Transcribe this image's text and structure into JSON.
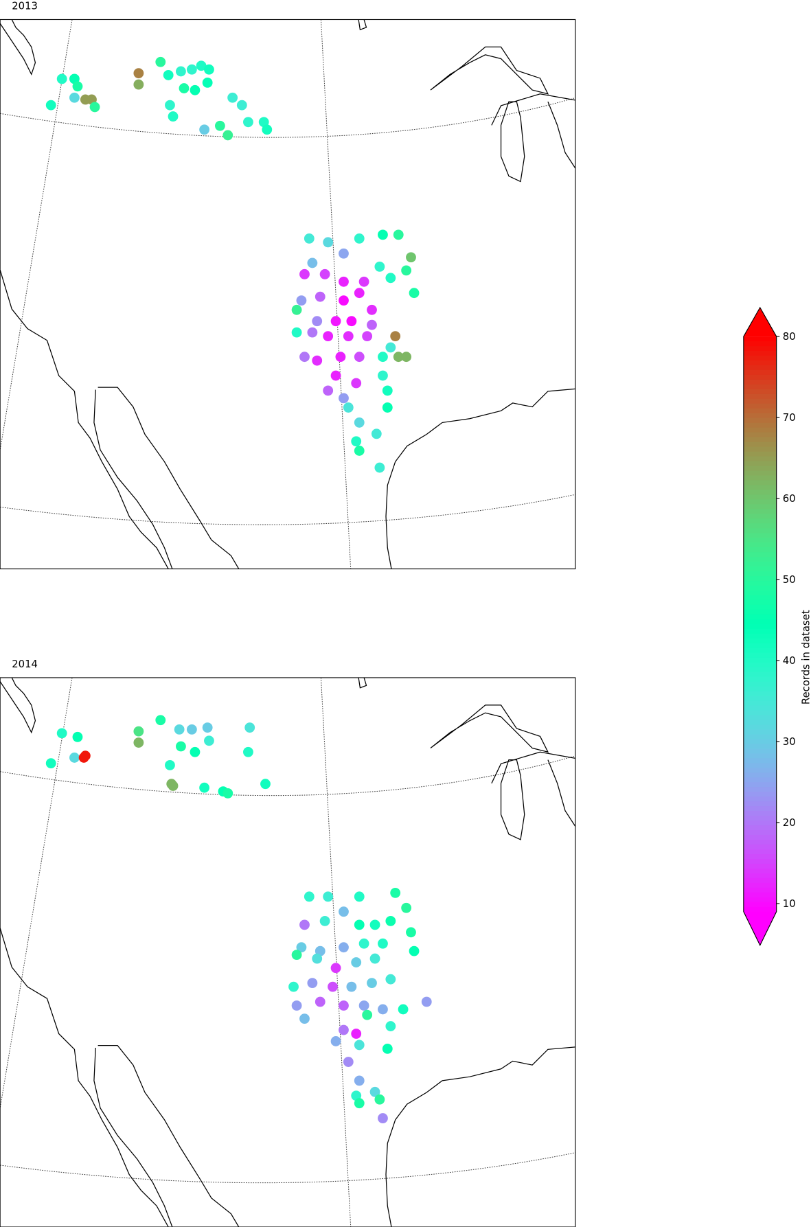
{
  "chart_data": [
    {
      "type": "scatter",
      "title": "2013",
      "lon": [
        -118.0,
        -117.3,
        -116.5,
        -116.3,
        -116.5,
        -115.8,
        -115.4,
        -115.2,
        -112.4,
        -112.4,
        -111.0,
        -110.5,
        -109.7,
        -109.0,
        -108.4,
        -107.9,
        -109.5,
        -108.8,
        -110.2,
        -110.4,
        -108.2,
        -107.2,
        -106.7,
        -106.4,
        -105.8,
        -105.4,
        -104.4,
        -104.2,
        -108.0,
        -101.5,
        -100.3,
        -98.3,
        -96.8,
        -95.8,
        -95.0,
        -95.3,
        -94.8,
        -101.3,
        -101.8,
        -100.5,
        -99.3,
        -99.3,
        -98.0,
        -97.0,
        -96.3,
        -102.0,
        -100.8,
        -99.3,
        -98.3,
        -97.5,
        -102.3,
        -101.0,
        -99.8,
        -98.8,
        -97.5,
        -102.3,
        -101.3,
        -100.3,
        -99.0,
        -97.8,
        -96.0,
        -96.3,
        -95.8,
        -101.8,
        -101.0,
        -99.5,
        -98.3,
        -96.8,
        -95.3,
        -99.8,
        -98.5,
        -96.8,
        -100.3,
        -99.3,
        -96.5,
        -99.0,
        -96.5,
        -98.3,
        -97.2,
        -98.5,
        -98.3,
        -97.0
      ],
      "lat": [
        46.9,
        48.3,
        48.3,
        47.9,
        47.3,
        47.2,
        47.2,
        46.8,
        48.6,
        48.0,
        49.2,
        48.5,
        48.7,
        48.8,
        49.0,
        48.8,
        47.8,
        47.7,
        46.3,
        46.9,
        45.6,
        45.8,
        45.3,
        47.3,
        46.9,
        46.0,
        46.0,
        45.6,
        48.1,
        39.8,
        39.6,
        39.8,
        40.0,
        40.0,
        38.8,
        38.1,
        36.9,
        38.5,
        37.9,
        37.9,
        39.0,
        37.5,
        37.5,
        38.3,
        37.7,
        36.5,
        36.7,
        36.5,
        36.9,
        36.0,
        36.0,
        35.4,
        35.4,
        35.4,
        35.2,
        34.8,
        34.8,
        34.6,
        34.6,
        34.6,
        34.6,
        34.0,
        33.5,
        33.5,
        33.3,
        33.5,
        33.5,
        33.5,
        33.5,
        32.5,
        32.1,
        32.5,
        31.7,
        31.3,
        31.7,
        30.8,
        30.8,
        30.0,
        29.4,
        29.0,
        28.5,
        27.6
      ],
      "values": [
        42,
        40,
        45,
        48,
        32,
        65,
        65,
        50,
        68,
        63,
        50,
        42,
        38,
        38,
        40,
        42,
        48,
        45,
        40,
        38,
        30,
        50,
        52,
        36,
        36,
        38,
        40,
        42,
        44,
        35,
        32,
        38,
        45,
        50,
        60,
        50,
        48,
        28,
        14,
        15,
        25,
        12,
        14,
        38,
        40,
        24,
        18,
        10,
        12,
        13,
        52,
        22,
        11,
        10,
        18,
        40,
        20,
        12,
        13,
        15,
        68,
        35,
        62,
        20,
        13,
        12,
        16,
        40,
        62,
        12,
        14,
        38,
        18,
        24,
        42,
        34,
        45,
        32,
        35,
        40,
        48,
        36
      ]
    },
    {
      "type": "scatter",
      "title": "2014",
      "lon": [
        -118.0,
        -117.3,
        -116.3,
        -116.5,
        -115.9,
        -115.8,
        -112.4,
        -112.4,
        -111.0,
        -109.8,
        -109.0,
        -108.0,
        -109.7,
        -108.8,
        -110.4,
        -110.3,
        -110.2,
        -108.2,
        -107.0,
        -106.7,
        -105.3,
        -105.4,
        -104.3,
        -107.9,
        -101.5,
        -100.3,
        -98.3,
        -96.0,
        -95.3,
        -95.0,
        -94.8,
        -101.8,
        -100.5,
        -99.3,
        -98.3,
        -97.3,
        -96.3,
        -102.0,
        -100.8,
        -99.3,
        -98.0,
        -96.8,
        -102.3,
        -101.0,
        -99.8,
        -98.5,
        -97.3,
        -102.5,
        -101.3,
        -100.0,
        -98.8,
        -97.5,
        -96.3,
        -102.3,
        -100.8,
        -99.3,
        -98.0,
        -96.8,
        -95.5,
        -94.0,
        -97.8,
        -101.8,
        -99.3,
        -96.3,
        -98.5,
        -99.8,
        -98.3,
        -96.5,
        -99.0,
        -98.3,
        -97.3,
        -98.5,
        -98.3,
        -97.0,
        -96.8
      ],
      "lat": [
        46.9,
        48.5,
        48.3,
        47.2,
        47.2,
        47.3,
        48.6,
        48.0,
        49.2,
        48.7,
        48.7,
        48.8,
        47.8,
        47.5,
        46.8,
        45.8,
        45.7,
        45.6,
        45.4,
        45.3,
        48.8,
        47.5,
        45.8,
        48.1,
        39.8,
        39.8,
        39.8,
        40.0,
        39.2,
        37.9,
        36.9,
        38.3,
        38.5,
        39.0,
        38.3,
        38.3,
        38.5,
        37.1,
        36.9,
        37.1,
        37.3,
        37.3,
        36.7,
        36.5,
        36.0,
        36.3,
        36.5,
        35.0,
        35.2,
        35.0,
        35.0,
        35.2,
        35.4,
        34.0,
        34.2,
        34.0,
        34.0,
        33.8,
        33.8,
        34.2,
        33.5,
        33.3,
        32.7,
        32.9,
        32.5,
        32.1,
        31.9,
        31.7,
        31.0,
        30.0,
        29.4,
        29.2,
        28.8,
        29.0,
        28.0
      ],
      "values": [
        42,
        40,
        45,
        32,
        78,
        78,
        55,
        62,
        48,
        32,
        30,
        30,
        48,
        45,
        40,
        62,
        62,
        42,
        45,
        48,
        34,
        40,
        42,
        36,
        38,
        36,
        40,
        48,
        50,
        48,
        45,
        20,
        36,
        28,
        45,
        42,
        46,
        30,
        28,
        26,
        38,
        40,
        50,
        33,
        14,
        30,
        35,
        38,
        24,
        16,
        28,
        30,
        35,
        24,
        18,
        18,
        25,
        26,
        42,
        24,
        50,
        28,
        20,
        38,
        12,
        26,
        34,
        45,
        22,
        26,
        32,
        38,
        48,
        50,
        22
      ]
    }
  ],
  "colorbar": {
    "label": "Records in dataset",
    "lim": [
      9,
      80
    ],
    "ticks": [
      10,
      20,
      30,
      40,
      50,
      60,
      70,
      80
    ],
    "colormap": "rainbow",
    "extend": "both"
  }
}
